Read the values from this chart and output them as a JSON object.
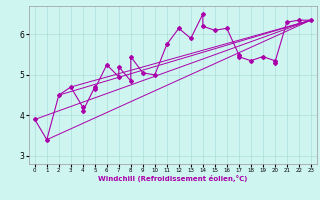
{
  "xlabel": "Windchill (Refroidissement éolien,°C)",
  "ylabel": "",
  "background_color": "#cff5f0",
  "line_color": "#aa00aa",
  "grid_color": "#aadddd",
  "xlim": [
    -0.5,
    23.5
  ],
  "ylim": [
    2.8,
    6.7
  ],
  "xticks": [
    0,
    1,
    2,
    3,
    4,
    5,
    6,
    7,
    8,
    9,
    10,
    11,
    12,
    13,
    14,
    15,
    16,
    17,
    18,
    19,
    20,
    21,
    22,
    23
  ],
  "yticks": [
    3,
    4,
    5,
    6
  ],
  "series": [
    [
      0,
      3.9
    ],
    [
      1,
      3.4
    ],
    [
      2,
      4.5
    ],
    [
      3,
      4.7
    ],
    [
      4,
      4.2
    ],
    [
      4,
      4.1
    ],
    [
      5,
      4.7
    ],
    [
      5,
      4.65
    ],
    [
      6,
      5.25
    ],
    [
      7,
      4.95
    ],
    [
      7,
      5.2
    ],
    [
      8,
      4.85
    ],
    [
      8,
      5.45
    ],
    [
      9,
      5.05
    ],
    [
      10,
      5.0
    ],
    [
      11,
      5.75
    ],
    [
      12,
      6.15
    ],
    [
      13,
      5.9
    ],
    [
      14,
      6.5
    ],
    [
      14,
      6.2
    ],
    [
      15,
      6.1
    ],
    [
      16,
      6.15
    ],
    [
      17,
      5.5
    ],
    [
      17,
      5.45
    ],
    [
      18,
      5.35
    ],
    [
      19,
      5.45
    ],
    [
      20,
      5.35
    ],
    [
      20,
      5.3
    ],
    [
      21,
      6.3
    ],
    [
      22,
      6.35
    ],
    [
      23,
      6.35
    ]
  ],
  "lines": [
    [
      [
        0,
        23
      ],
      [
        3.9,
        6.35
      ]
    ],
    [
      [
        2,
        23
      ],
      [
        4.5,
        6.35
      ]
    ],
    [
      [
        3,
        23
      ],
      [
        4.7,
        6.35
      ]
    ],
    [
      [
        1,
        23
      ],
      [
        3.4,
        6.35
      ]
    ]
  ]
}
